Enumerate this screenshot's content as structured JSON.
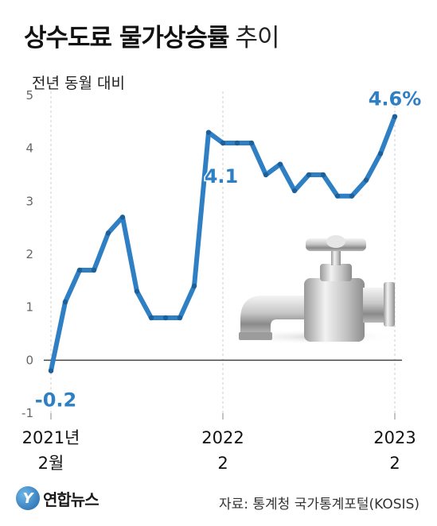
{
  "title": {
    "bold": "상수도료 물가상승률",
    "light": "추이"
  },
  "subtitle": "전년 동월 대비",
  "source": "자료: 통계청 국가통계포털(KOSIS)",
  "logo": {
    "mark": "Y",
    "text": "연합뉴스"
  },
  "colors": {
    "line": "#2f7fc4",
    "value_label": "#2f7fc4",
    "grid": "#cccccc",
    "zero_line": "#444444"
  },
  "chart_data": {
    "type": "line",
    "title": "상수도료 물가상승률 추이",
    "ylabel": "전년 동월 대비",
    "ylim": [
      -1,
      5
    ],
    "yticks": [
      "-1",
      "0",
      "1",
      "2",
      "3",
      "4",
      "5"
    ],
    "grid": "vertical dashed at ticks, horizontal zero line",
    "xticks": [
      {
        "index": 0,
        "line1": "2021년",
        "line2": "2월"
      },
      {
        "index": 12,
        "line1": "2022",
        "line2": "2"
      },
      {
        "index": 24,
        "line1": "2023",
        "line2": "2"
      }
    ],
    "x": [
      "2021-02",
      "2021-03",
      "2021-04",
      "2021-05",
      "2021-06",
      "2021-07",
      "2021-08",
      "2021-09",
      "2021-10",
      "2021-11",
      "2021-12",
      "2022-01",
      "2022-02",
      "2022-03",
      "2022-04",
      "2022-05",
      "2022-06",
      "2022-07",
      "2022-08",
      "2022-09",
      "2022-10",
      "2022-11",
      "2022-12",
      "2023-01",
      "2023-02"
    ],
    "series": [
      {
        "values": [
          -0.2,
          1.1,
          1.7,
          1.7,
          2.4,
          2.7,
          1.3,
          0.8,
          0.8,
          0.8,
          1.4,
          4.3,
          4.1,
          4.1,
          4.1,
          3.5,
          3.7,
          3.2,
          3.5,
          3.5,
          3.1,
          3.1,
          3.4,
          3.9,
          4.6
        ]
      }
    ],
    "annotations": [
      {
        "index": 0,
        "text": "-0.2"
      },
      {
        "index": 12,
        "text": "4.1"
      },
      {
        "index": 24,
        "text": "4.6%"
      }
    ]
  }
}
